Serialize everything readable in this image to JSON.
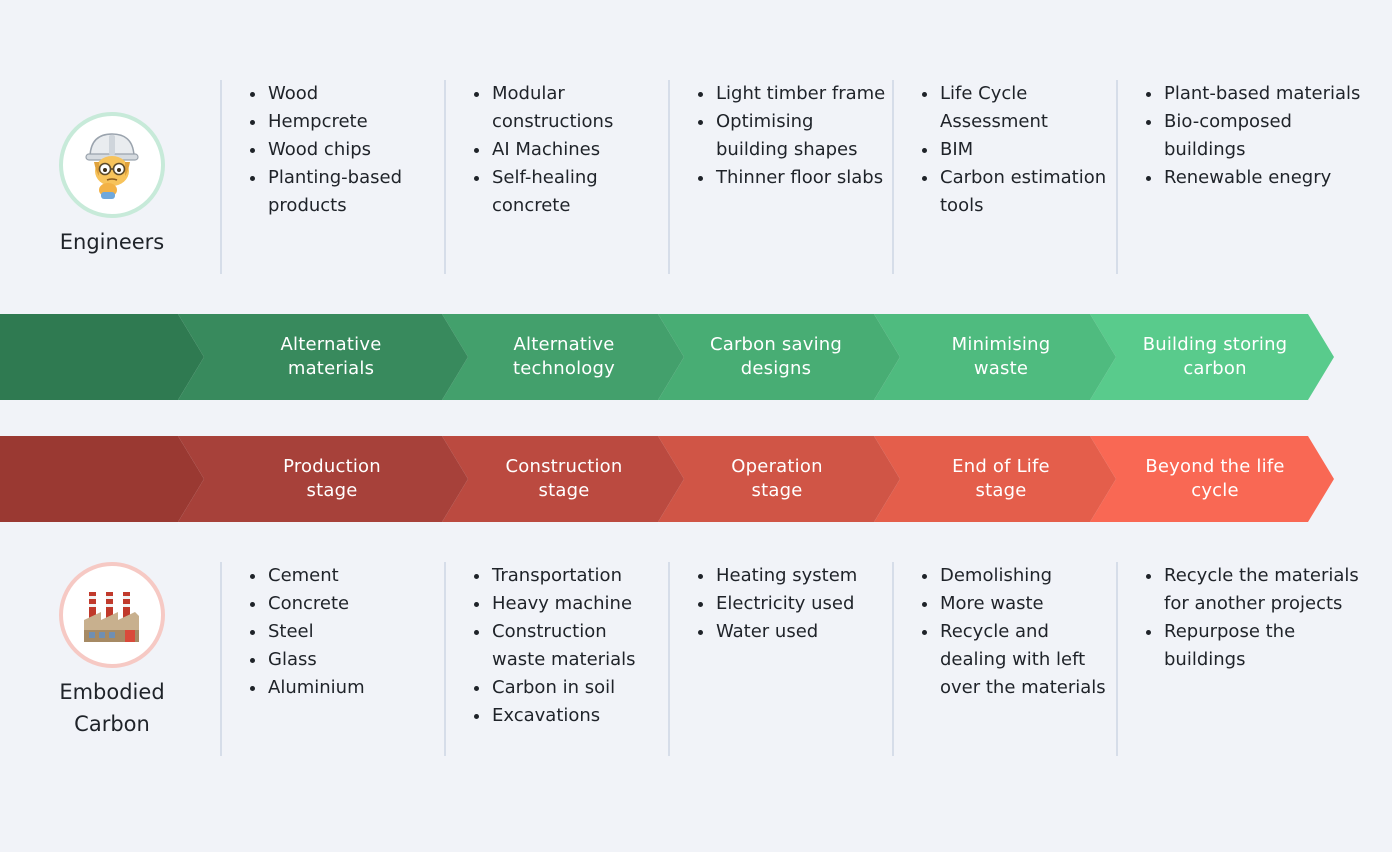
{
  "engineers": {
    "label": "Engineers",
    "icon": "engineer-emoji-icon",
    "columns": [
      {
        "items": [
          "Wood",
          "Hempcrete",
          "Wood chips",
          "Planting-based products"
        ]
      },
      {
        "items": [
          "Modular constructions",
          "AI Machines",
          "Self-healing concrete"
        ]
      },
      {
        "items": [
          "Light timber frame",
          "Optimising building shapes",
          "Thinner floor slabs"
        ]
      },
      {
        "items": [
          "Life Cycle Assessment",
          "BIM",
          "Carbon estimation tools"
        ]
      },
      {
        "items": [
          "Plant-based materials",
          "Bio-composed buildings",
          "Renewable enegry"
        ]
      }
    ]
  },
  "solutions_band": {
    "segments": [
      {
        "label": "Alternative materials",
        "color": "#388a5d"
      },
      {
        "label": "Alternative technology",
        "color": "#43a06c"
      },
      {
        "label": "Carbon saving designs",
        "color": "#48ad74"
      },
      {
        "label": "Minimising waste",
        "color": "#4fbb7f"
      },
      {
        "label": "Building storing carbon",
        "color": "#59cb8c"
      }
    ],
    "lead_color": "#2f7a51"
  },
  "stages_band": {
    "segments": [
      {
        "label": "Production stage",
        "color": "#a7413a"
      },
      {
        "label": "Construction stage",
        "color": "#bb4a40"
      },
      {
        "label": "Operation stage",
        "color": "#d05546"
      },
      {
        "label": "End of Life stage",
        "color": "#e45e4b"
      },
      {
        "label": "Beyond the life cycle",
        "color": "#f96854"
      }
    ],
    "lead_color": "#9a3932"
  },
  "embodied": {
    "label": "Embodied Carbon",
    "icon": "factory-emoji-icon",
    "columns": [
      {
        "items": [
          "Cement",
          "Concrete",
          "Steel",
          "Glass",
          "Aluminium"
        ]
      },
      {
        "items": [
          "Transportation",
          "Heavy machine",
          "Construction waste materials",
          "Carbon in soil",
          "Excavations"
        ]
      },
      {
        "items": [
          "Heating system",
          "Electricity used",
          "Water used"
        ]
      },
      {
        "items": [
          "Demolishing",
          "More waste",
          "Recycle and dealing with left over the materials"
        ]
      },
      {
        "items": [
          "Recycle the materials for another projects",
          "Repurpose the buildings"
        ]
      }
    ]
  }
}
